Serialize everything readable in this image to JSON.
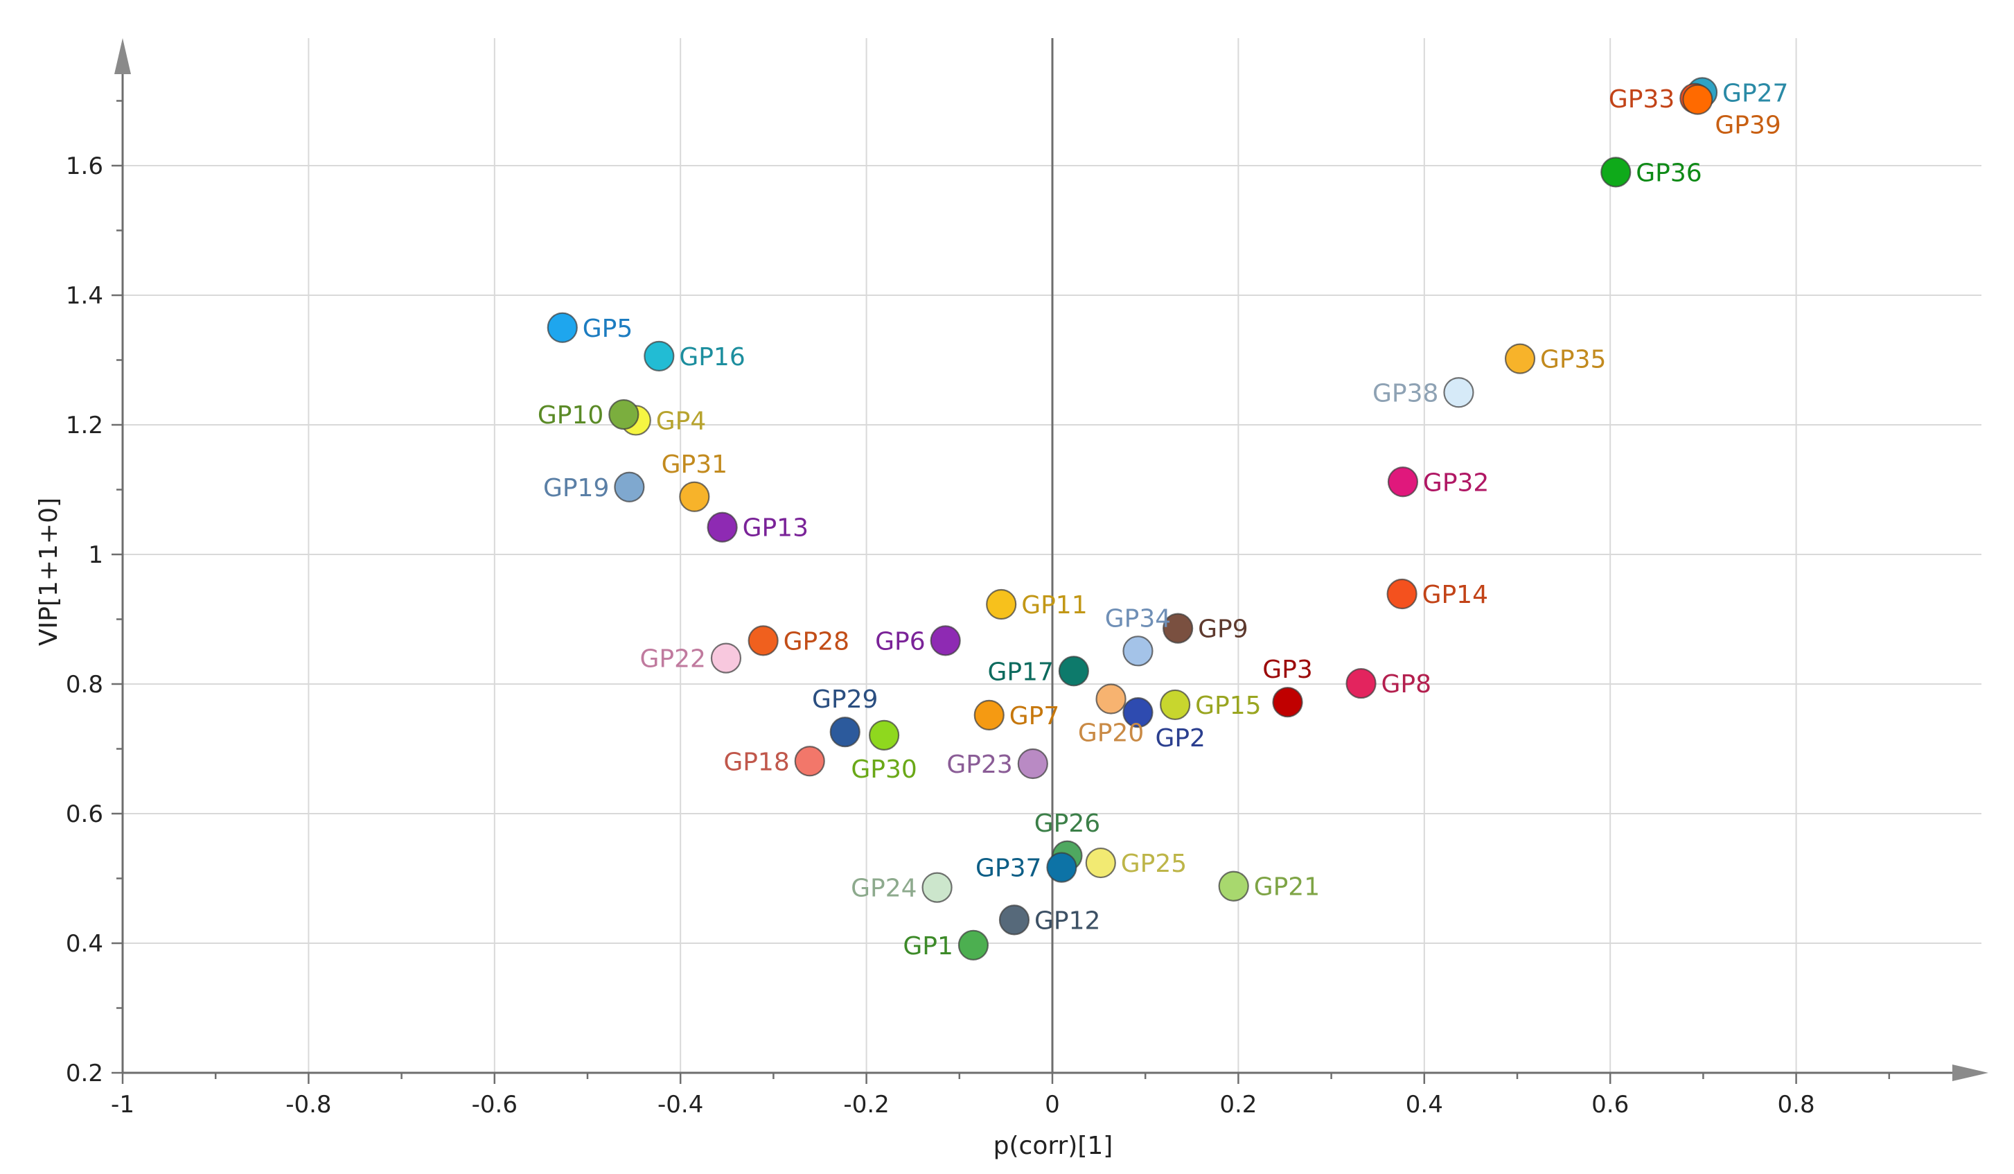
{
  "chart_data": {
    "type": "scatter",
    "title": "",
    "xlabel": "p(corr)[1]",
    "ylabel": "VIP[1+1+0]",
    "xlim": [
      -1,
      1
    ],
    "ylim": [
      0.2,
      1.8
    ],
    "xticks": [
      -1,
      -0.8,
      -0.6,
      -0.4,
      -0.2,
      0,
      0.2,
      0.4,
      0.6,
      0.8
    ],
    "xtick_labels": [
      "-1",
      "-0.8",
      "-0.6",
      "-0.4",
      "-0.2",
      "0",
      "0.2",
      "0.4",
      "0.6",
      "0.8"
    ],
    "yticks": [
      0.2,
      0.4,
      0.6,
      0.8,
      1.0,
      1.2,
      1.4,
      1.6
    ],
    "ytick_labels": [
      "0.2",
      "0.4",
      "0.6",
      "0.8",
      "1",
      "1.2",
      "1.4",
      "1.6"
    ],
    "grid": true,
    "points": [
      {
        "label": "GP1",
        "x": -0.085,
        "y": 0.397,
        "color": "#4CAF50",
        "label_color": "#3C8A28",
        "anchor": "left"
      },
      {
        "label": "GP2",
        "x": 0.092,
        "y": 0.756,
        "color": "#2E4BB0",
        "label_color": "#2B3F8F",
        "anchor": "below-right"
      },
      {
        "label": "GP3",
        "x": 0.253,
        "y": 0.772,
        "color": "#C00000",
        "label_color": "#9C0A0A",
        "anchor": "above"
      },
      {
        "label": "GP4",
        "x": -0.448,
        "y": 1.207,
        "color": "#F5F542",
        "label_color": "#B7A32E",
        "anchor": "right"
      },
      {
        "label": "GP5",
        "x": -0.527,
        "y": 1.35,
        "color": "#1EA6EE",
        "label_color": "#1C7CC0",
        "anchor": "right"
      },
      {
        "label": "GP6",
        "x": -0.115,
        "y": 0.867,
        "color": "#8E2AB3",
        "label_color": "#7A2398",
        "anchor": "left"
      },
      {
        "label": "GP7",
        "x": -0.068,
        "y": 0.752,
        "color": "#F59A12",
        "label_color": "#C6770C",
        "anchor": "right"
      },
      {
        "label": "GP8",
        "x": 0.332,
        "y": 0.801,
        "color": "#E3245E",
        "label_color": "#B31F4E",
        "anchor": "right"
      },
      {
        "label": "GP9",
        "x": 0.135,
        "y": 0.886,
        "color": "#7A5040",
        "label_color": "#5E3A2E",
        "anchor": "right"
      },
      {
        "label": "GP10",
        "x": -0.461,
        "y": 1.216,
        "color": "#7BAE3E",
        "label_color": "#5A8A26",
        "anchor": "left"
      },
      {
        "label": "GP11",
        "x": -0.055,
        "y": 0.923,
        "color": "#F7C11C",
        "label_color": "#C29716",
        "anchor": "right"
      },
      {
        "label": "GP12",
        "x": -0.041,
        "y": 0.436,
        "color": "#56697A",
        "label_color": "#3C5064",
        "anchor": "right"
      },
      {
        "label": "GP13",
        "x": -0.355,
        "y": 1.042,
        "color": "#8E2AB3",
        "label_color": "#7A2398",
        "anchor": "right"
      },
      {
        "label": "GP14",
        "x": 0.376,
        "y": 0.939,
        "color": "#F4511E",
        "label_color": "#C24317",
        "anchor": "right"
      },
      {
        "label": "GP15",
        "x": 0.132,
        "y": 0.768,
        "color": "#C8D62E",
        "label_color": "#99A520",
        "anchor": "right"
      },
      {
        "label": "GP16",
        "x": -0.423,
        "y": 1.306,
        "color": "#22BCD4",
        "label_color": "#1C8E9E",
        "anchor": "right"
      },
      {
        "label": "GP17",
        "x": 0.023,
        "y": 0.82,
        "color": "#0D7A6B",
        "label_color": "#0D6B5E",
        "anchor": "left"
      },
      {
        "label": "GP18",
        "x": -0.261,
        "y": 0.681,
        "color": "#F2776A",
        "label_color": "#C0574B",
        "anchor": "left"
      },
      {
        "label": "GP19",
        "x": -0.455,
        "y": 1.104,
        "color": "#7FA8CF",
        "label_color": "#5A7FA6",
        "anchor": "left"
      },
      {
        "label": "GP20",
        "x": 0.063,
        "y": 0.777,
        "color": "#F7B370",
        "label_color": "#C98A45",
        "anchor": "below"
      },
      {
        "label": "GP21",
        "x": 0.195,
        "y": 0.488,
        "color": "#A8D86E",
        "label_color": "#7EA445",
        "anchor": "right"
      },
      {
        "label": "GP22",
        "x": -0.351,
        "y": 0.84,
        "color": "#F8C8DE",
        "label_color": "#C07A9E",
        "anchor": "left"
      },
      {
        "label": "GP23",
        "x": -0.021,
        "y": 0.677,
        "color": "#B98AC4",
        "label_color": "#8A5C96",
        "anchor": "left"
      },
      {
        "label": "GP24",
        "x": -0.124,
        "y": 0.486,
        "color": "#CCE6CC",
        "label_color": "#8DAA8D",
        "anchor": "left"
      },
      {
        "label": "GP25",
        "x": 0.052,
        "y": 0.524,
        "color": "#F2EA72",
        "label_color": "#BDB548",
        "anchor": "right"
      },
      {
        "label": "GP26",
        "x": 0.016,
        "y": 0.535,
        "color": "#4FA860",
        "label_color": "#3B7F48",
        "anchor": "above"
      },
      {
        "label": "GP27",
        "x": 0.699,
        "y": 1.713,
        "color": "#2FA3C4",
        "label_color": "#2A8AA6",
        "anchor": "right"
      },
      {
        "label": "GP28",
        "x": -0.311,
        "y": 0.867,
        "color": "#F0601E",
        "label_color": "#C24D17",
        "anchor": "right"
      },
      {
        "label": "GP29",
        "x": -0.223,
        "y": 0.726,
        "color": "#2C5A9C",
        "label_color": "#2A4E80",
        "anchor": "above"
      },
      {
        "label": "GP30",
        "x": -0.181,
        "y": 0.721,
        "color": "#8FD81E",
        "label_color": "#6AA817",
        "anchor": "below"
      },
      {
        "label": "GP31",
        "x": -0.385,
        "y": 1.089,
        "color": "#F7B32A",
        "label_color": "#C28A1E",
        "anchor": "above"
      },
      {
        "label": "GP32",
        "x": 0.377,
        "y": 1.112,
        "color": "#E0187C",
        "label_color": "#B01764",
        "anchor": "right"
      },
      {
        "label": "GP33",
        "x": 0.691,
        "y": 1.704,
        "color": "#F4511E",
        "label_color": "#C24317",
        "anchor": "left"
      },
      {
        "label": "GP34",
        "x": 0.092,
        "y": 0.851,
        "color": "#A4C3E8",
        "label_color": "#6F8FB6",
        "anchor": "above"
      },
      {
        "label": "GP35",
        "x": 0.503,
        "y": 1.302,
        "color": "#F7B32A",
        "label_color": "#C28A1E",
        "anchor": "right"
      },
      {
        "label": "GP36",
        "x": 0.606,
        "y": 1.59,
        "color": "#0FAA1A",
        "label_color": "#0E8A16",
        "anchor": "right"
      },
      {
        "label": "GP37",
        "x": 0.01,
        "y": 0.517,
        "color": "#0D73A6",
        "label_color": "#0D5E86",
        "anchor": "left"
      },
      {
        "label": "GP38",
        "x": 0.437,
        "y": 1.25,
        "color": "#D6EAF8",
        "label_color": "#8EA2B4",
        "anchor": "left"
      },
      {
        "label": "GP39",
        "x": 0.694,
        "y": 1.702,
        "color": "#FF6A00",
        "label_color": "#C85F12",
        "anchor": "below-right"
      }
    ]
  }
}
